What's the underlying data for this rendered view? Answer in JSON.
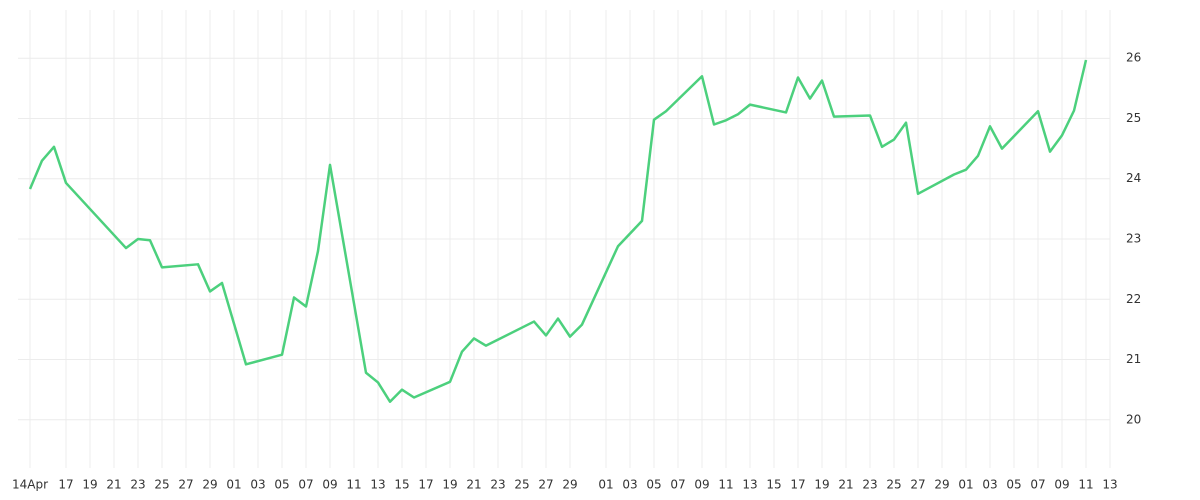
{
  "chart_data": {
    "type": "line",
    "x": [
      "04-14",
      "04-15",
      "04-16",
      "04-17",
      "04-22",
      "04-23",
      "04-24",
      "04-25",
      "04-28",
      "04-29",
      "04-30",
      "05-02",
      "05-05",
      "05-06",
      "05-07",
      "05-08",
      "05-09",
      "05-12",
      "05-13",
      "05-14",
      "05-15",
      "05-16",
      "05-19",
      "05-20",
      "05-21",
      "05-22",
      "05-23",
      "05-26",
      "05-27",
      "05-28",
      "05-29",
      "05-30",
      "06-02",
      "06-04",
      "06-05",
      "06-06",
      "06-09",
      "06-10",
      "06-11",
      "06-12",
      "06-13",
      "06-16",
      "06-17",
      "06-18",
      "06-19",
      "06-20",
      "06-23",
      "06-24",
      "06-25",
      "06-26",
      "06-27",
      "06-30",
      "07-01",
      "07-02",
      "07-03",
      "07-04",
      "07-07",
      "07-08",
      "07-09",
      "07-10",
      "07-11"
    ],
    "series": [
      {
        "color": "#4cd07d",
        "values": [
          23.83,
          24.3,
          24.53,
          23.93,
          22.85,
          23.0,
          22.98,
          22.53,
          22.58,
          22.13,
          22.27,
          20.92,
          21.08,
          22.03,
          21.88,
          22.8,
          24.23,
          20.78,
          20.62,
          20.3,
          20.5,
          20.37,
          20.63,
          21.13,
          21.35,
          21.23,
          21.33,
          21.63,
          21.4,
          21.68,
          21.38,
          21.58,
          22.88,
          23.3,
          24.98,
          25.12,
          25.7,
          24.9,
          24.97,
          25.07,
          25.23,
          25.1,
          25.68,
          25.33,
          25.63,
          25.03,
          25.05,
          24.53,
          24.65,
          24.93,
          23.75,
          24.07,
          24.15,
          24.38,
          24.87,
          24.5,
          25.12,
          24.45,
          24.72,
          25.13,
          25.97
        ]
      }
    ],
    "xlim": [
      "04-13",
      "07-13"
    ],
    "xticks": [
      {
        "value": "04-14",
        "label": "14Apr"
      },
      {
        "value": "04-17",
        "label": "17"
      },
      {
        "value": "04-19",
        "label": "19"
      },
      {
        "value": "04-21",
        "label": "21"
      },
      {
        "value": "04-23",
        "label": "23"
      },
      {
        "value": "04-25",
        "label": "25"
      },
      {
        "value": "04-27",
        "label": "27"
      },
      {
        "value": "04-29",
        "label": "29"
      },
      {
        "value": "05-01",
        "label": "01"
      },
      {
        "value": "05-03",
        "label": "03"
      },
      {
        "value": "05-05",
        "label": "05"
      },
      {
        "value": "05-07",
        "label": "07"
      },
      {
        "value": "05-09",
        "label": "09"
      },
      {
        "value": "05-11",
        "label": "11"
      },
      {
        "value": "05-13",
        "label": "13"
      },
      {
        "value": "05-15",
        "label": "15"
      },
      {
        "value": "05-17",
        "label": "17"
      },
      {
        "value": "05-19",
        "label": "19"
      },
      {
        "value": "05-21",
        "label": "21"
      },
      {
        "value": "05-23",
        "label": "23"
      },
      {
        "value": "05-25",
        "label": "25"
      },
      {
        "value": "05-27",
        "label": "27"
      },
      {
        "value": "05-29",
        "label": "29"
      },
      {
        "value": "06-01",
        "label": "01"
      },
      {
        "value": "06-03",
        "label": "03"
      },
      {
        "value": "06-05",
        "label": "05"
      },
      {
        "value": "06-07",
        "label": "07"
      },
      {
        "value": "06-09",
        "label": "09"
      },
      {
        "value": "06-11",
        "label": "11"
      },
      {
        "value": "06-13",
        "label": "13"
      },
      {
        "value": "06-15",
        "label": "15"
      },
      {
        "value": "06-17",
        "label": "17"
      },
      {
        "value": "06-19",
        "label": "19"
      },
      {
        "value": "06-21",
        "label": "21"
      },
      {
        "value": "06-23",
        "label": "23"
      },
      {
        "value": "06-25",
        "label": "25"
      },
      {
        "value": "06-27",
        "label": "27"
      },
      {
        "value": "06-29",
        "label": "29"
      },
      {
        "value": "07-01",
        "label": "01"
      },
      {
        "value": "07-03",
        "label": "03"
      },
      {
        "value": "07-05",
        "label": "05"
      },
      {
        "value": "07-07",
        "label": "07"
      },
      {
        "value": "07-09",
        "label": "09"
      },
      {
        "value": "07-11",
        "label": "11"
      },
      {
        "value": "07-13",
        "label": "13"
      }
    ],
    "ylim": [
      19.2,
      26.8
    ],
    "yticks": [
      20,
      21,
      22,
      23,
      24,
      25,
      26
    ],
    "grid": true
  }
}
